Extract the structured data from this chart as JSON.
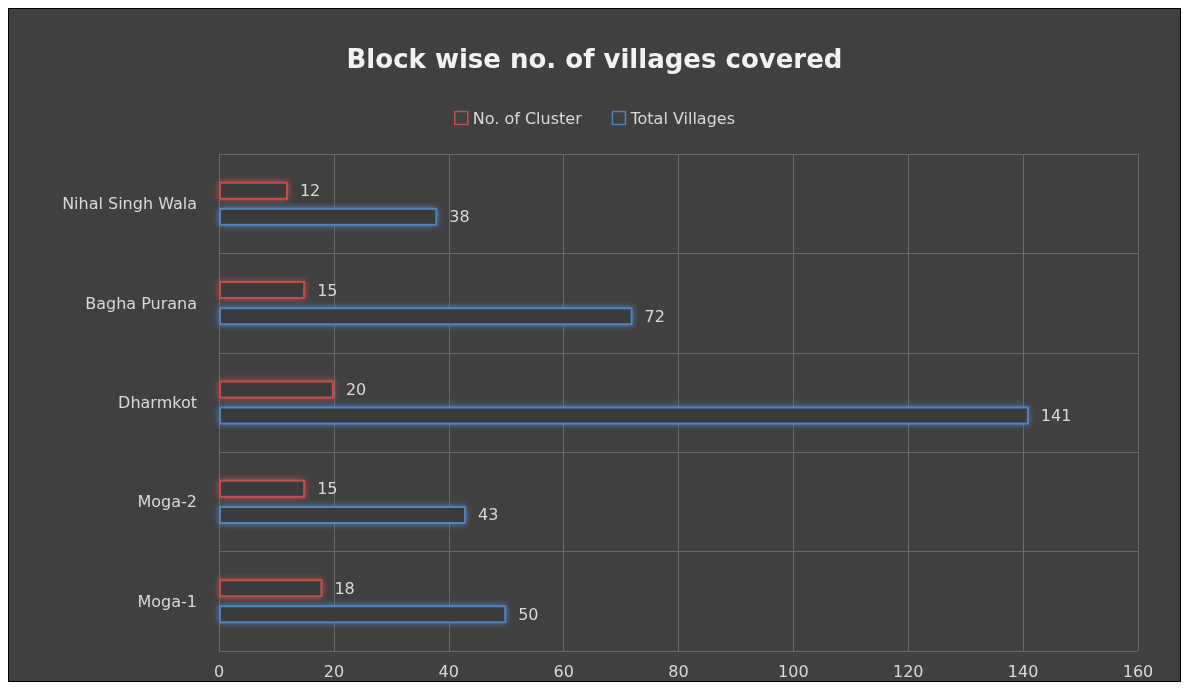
{
  "chart_data": {
    "type": "bar",
    "title": "Block wise no. of villages covered",
    "orientation": "horizontal",
    "categories": [
      "Nihal Singh Wala",
      "Bagha Purana",
      "Dharmkot",
      "Moga-2",
      "Moga-1"
    ],
    "series": [
      {
        "name": "No. of Cluster",
        "color": "#c0504d",
        "values": [
          12,
          15,
          20,
          15,
          18
        ]
      },
      {
        "name": "Total Villages",
        "color": "#4f81bd",
        "values": [
          38,
          72,
          141,
          43,
          50
        ]
      }
    ],
    "xlim": [
      0,
      160
    ],
    "xticks": [
      0,
      20,
      40,
      60,
      80,
      100,
      120,
      140,
      160
    ],
    "grid": true,
    "legend": "top",
    "data_labels": true
  }
}
